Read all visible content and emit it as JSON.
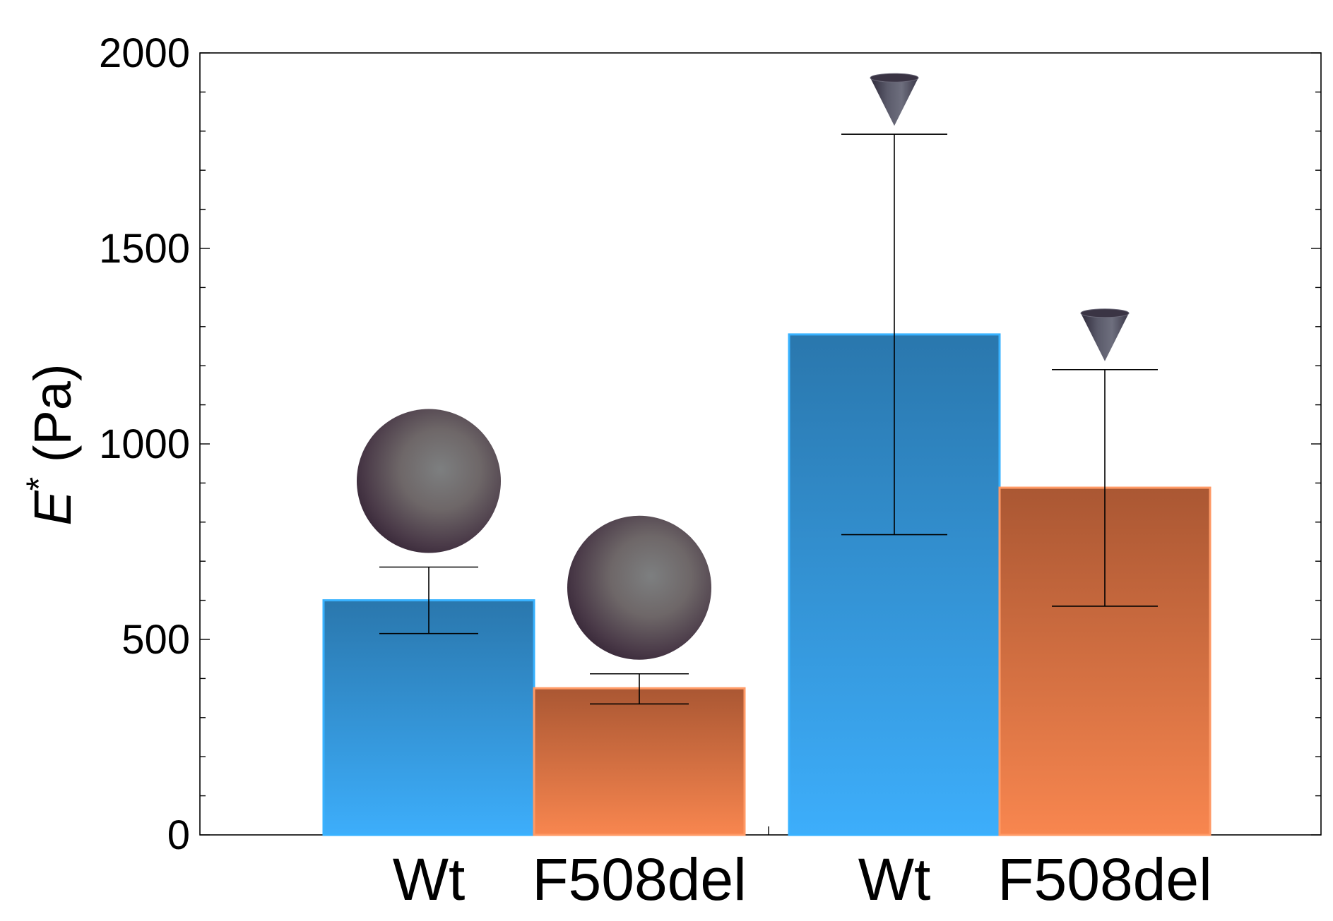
{
  "chart_data": {
    "type": "bar",
    "title": "",
    "xlabel": "",
    "ylabel": {
      "symbol": "E",
      "superscript": "*",
      "unit": " (Pa)"
    },
    "ylim": [
      0,
      2000
    ],
    "yticks": [
      "0",
      "500",
      "1000",
      "1500",
      "2000"
    ],
    "grid": false,
    "groups": [
      {
        "name": "sphere",
        "probe_icon": "sphere-probe-icon",
        "bars": [
          {
            "category": "Wt",
            "value": 600,
            "error_low": 515,
            "error_high": 685,
            "series": "Wt"
          },
          {
            "category": "F508del",
            "value": 375,
            "error_low": 335,
            "error_high": 412,
            "series": "F508del"
          }
        ]
      },
      {
        "name": "cone",
        "probe_icon": "cone-probe-icon",
        "bars": [
          {
            "category": "Wt",
            "value": 1280,
            "error_low": 768,
            "error_high": 1792,
            "series": "Wt"
          },
          {
            "category": "F508del",
            "value": 888,
            "error_low": 585,
            "error_high": 1190,
            "series": "F508del"
          }
        ]
      }
    ],
    "series_colors": {
      "Wt": {
        "top": "#2a77ad",
        "bottom": "#3daefb",
        "edge": "#38b2ff"
      },
      "F508del": {
        "top": "#aa5733",
        "bottom": "#f8864f",
        "edge": "#ff9a66"
      }
    }
  }
}
